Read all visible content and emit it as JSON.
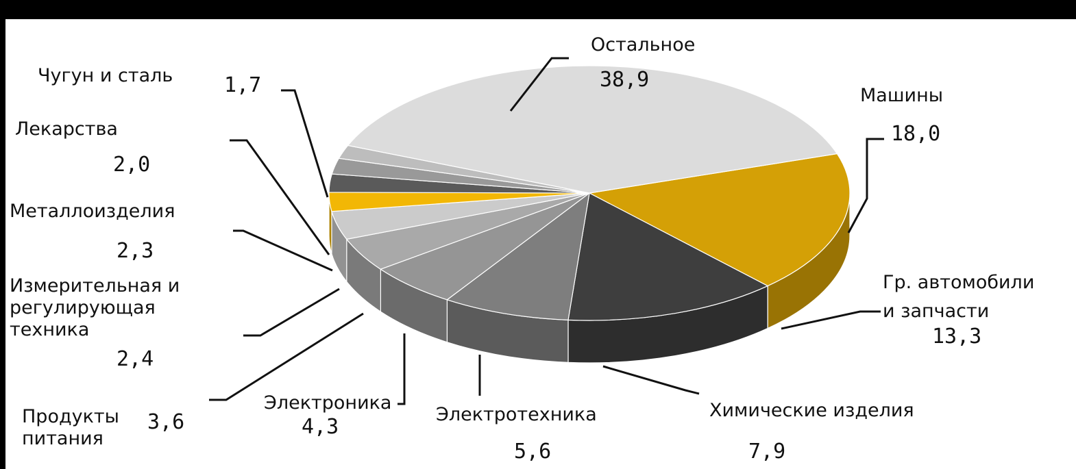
{
  "chart_data": {
    "type": "pie",
    "slices": [
      {
        "label": "Машины",
        "value": 18.0,
        "display": "18,0",
        "color": "#D4A006"
      },
      {
        "label": "Гр. автомобили\nи запчасти",
        "value": 13.3,
        "display": "13,3",
        "color": "#3E3E3E"
      },
      {
        "label": "Химические изделия",
        "value": 7.9,
        "display": "7,9",
        "color": "#7E7E7E"
      },
      {
        "label": "Электротехника",
        "value": 5.6,
        "display": "5,6",
        "color": "#959595"
      },
      {
        "label": "Электроника",
        "value": 4.3,
        "display": "4,3",
        "color": "#A9A9A9"
      },
      {
        "label": "Продукты\nпитания",
        "value": 3.6,
        "display": "3,6",
        "color": "#CBCBCB"
      },
      {
        "label": "Измерительная и\nрегулирующая\nтехника",
        "value": 2.4,
        "display": "2,4",
        "color": "#F2B705"
      },
      {
        "label": "Металлоизделия",
        "value": 2.3,
        "display": "2,3",
        "color": "#5A5A5A"
      },
      {
        "label": "Лекарства",
        "value": 2.0,
        "display": "2,0",
        "color": "#999999"
      },
      {
        "label": "Чугун и сталь",
        "value": 1.7,
        "display": "1,7",
        "color": "#BDBDBD"
      },
      {
        "label": "Остальное",
        "value": 38.9,
        "display": "38,9",
        "color": "#DCDCDC"
      }
    ]
  }
}
